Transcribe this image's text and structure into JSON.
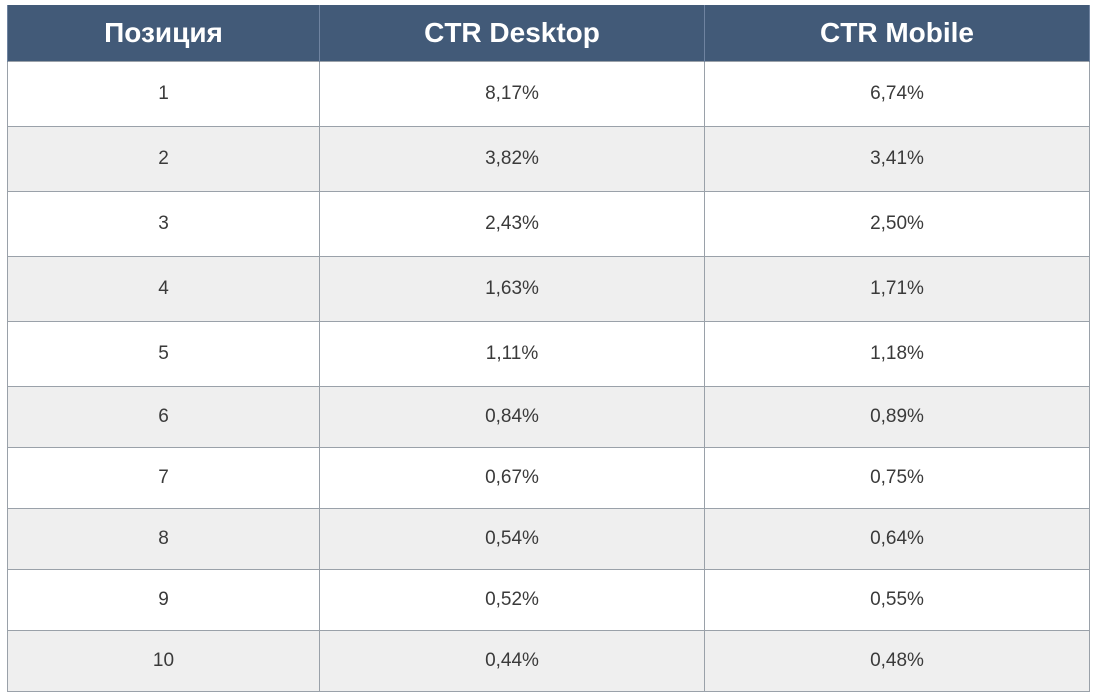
{
  "table": {
    "headers": [
      "Позиция",
      "CTR Desktop",
      "CTR Mobile"
    ],
    "rows": [
      [
        "1",
        "8,17%",
        "6,74%"
      ],
      [
        "2",
        "3,82%",
        "3,41%"
      ],
      [
        "3",
        "2,43%",
        "2,50%"
      ],
      [
        "4",
        "1,63%",
        "1,71%"
      ],
      [
        "5",
        "1,11%",
        "1,18%"
      ],
      [
        "6",
        "0,84%",
        "0,89%"
      ],
      [
        "7",
        "0,67%",
        "0,75%"
      ],
      [
        "8",
        "0,54%",
        "0,64%"
      ],
      [
        "9",
        "0,52%",
        "0,55%"
      ],
      [
        "10",
        "0,44%",
        "0,48%"
      ]
    ]
  },
  "colors": {
    "header_bg": "#425a78",
    "header_text": "#ffffff",
    "stripe_bg": "#efefef"
  }
}
